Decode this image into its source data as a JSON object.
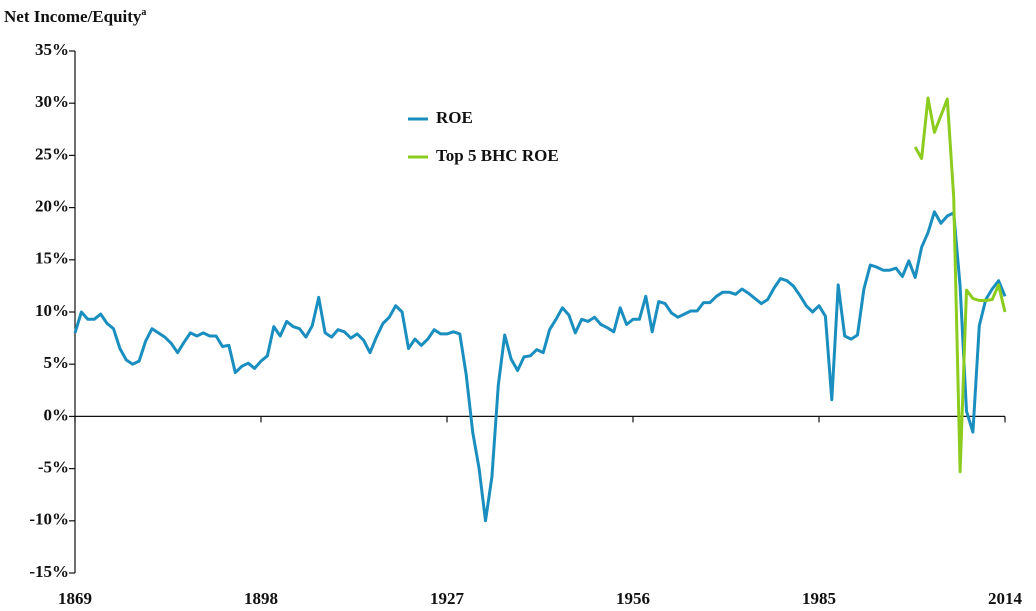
{
  "chart_data": {
    "type": "line",
    "title": "Net Income/Equity",
    "title_superscript": "a",
    "x": [
      1869,
      1870,
      1871,
      1872,
      1873,
      1874,
      1875,
      1876,
      1877,
      1878,
      1879,
      1880,
      1881,
      1882,
      1883,
      1884,
      1885,
      1886,
      1887,
      1888,
      1889,
      1890,
      1891,
      1892,
      1893,
      1894,
      1895,
      1896,
      1897,
      1898,
      1899,
      1900,
      1901,
      1902,
      1903,
      1904,
      1905,
      1906,
      1907,
      1908,
      1909,
      1910,
      1911,
      1912,
      1913,
      1914,
      1915,
      1916,
      1917,
      1918,
      1919,
      1920,
      1921,
      1922,
      1923,
      1924,
      1925,
      1926,
      1927,
      1928,
      1929,
      1930,
      1931,
      1932,
      1933,
      1934,
      1935,
      1936,
      1937,
      1938,
      1939,
      1940,
      1941,
      1942,
      1943,
      1944,
      1945,
      1946,
      1947,
      1948,
      1949,
      1950,
      1951,
      1952,
      1953,
      1954,
      1955,
      1956,
      1957,
      1958,
      1959,
      1960,
      1961,
      1962,
      1963,
      1964,
      1965,
      1966,
      1967,
      1968,
      1969,
      1970,
      1971,
      1972,
      1973,
      1974,
      1975,
      1976,
      1977,
      1978,
      1979,
      1980,
      1981,
      1982,
      1983,
      1984,
      1985,
      1986,
      1987,
      1988,
      1989,
      1990,
      1991,
      1992,
      1993,
      1994,
      1995,
      1996,
      1997,
      1998,
      1999,
      2000,
      2001,
      2002,
      2003,
      2004,
      2005,
      2006,
      2007,
      2008,
      2009,
      2010,
      2011,
      2012,
      2013,
      2014
    ],
    "series": [
      {
        "name": "ROE",
        "color": "#1a8fbf",
        "values": [
          8,
          10,
          9.3,
          9.3,
          9.8,
          8.9,
          8.4,
          6.5,
          5.4,
          5.0,
          5.3,
          7.2,
          8.4,
          8.0,
          7.6,
          7.0,
          6.1,
          7.1,
          8.0,
          7.7,
          8.0,
          7.7,
          7.7,
          6.7,
          6.8,
          4.2,
          4.8,
          5.1,
          4.6,
          5.3,
          5.8,
          8.6,
          7.7,
          9.1,
          8.6,
          8.4,
          7.6,
          8.7,
          11.4,
          8.0,
          7.6,
          8.3,
          8.1,
          7.5,
          7.9,
          7.3,
          6.1,
          7.6,
          8.9,
          9.5,
          10.6,
          10.0,
          6.5,
          7.4,
          6.8,
          7.4,
          8.3,
          7.9,
          7.9,
          8.1,
          7.9,
          4.0,
          -1.5,
          -5.0,
          -10.0,
          -5.8,
          3.0,
          7.8,
          5.5,
          4.4,
          5.7,
          5.8,
          6.4,
          6.1,
          8.3,
          9.3,
          10.4,
          9.7,
          8.0,
          9.3,
          9.1,
          9.5,
          8.8,
          8.5,
          8.1,
          10.4,
          8.8,
          9.3,
          9.3,
          11.5,
          8.1,
          11.0,
          10.8,
          9.9,
          9.5,
          9.8,
          10.1,
          10.1,
          10.9,
          10.9,
          11.5,
          11.9,
          11.9,
          11.7,
          12.2,
          11.8,
          11.3,
          10.8,
          11.2,
          12.3,
          13.2,
          13.0,
          12.5,
          11.6,
          10.6,
          10.0,
          10.6,
          9.6,
          1.6,
          12.6,
          7.7,
          7.4,
          7.8,
          12.2,
          14.5,
          14.3,
          14.0,
          14.0,
          14.2,
          13.4,
          14.9,
          13.3,
          16.2,
          17.6,
          19.6,
          18.5,
          19.2,
          19.5,
          12.5,
          0.5,
          -1.5,
          8.7,
          11.2,
          12.2,
          13.0,
          11.5
        ]
      },
      {
        "name": "Top 5 BHC ROE",
        "color": "#8ccc1e",
        "values": [
          null,
          null,
          null,
          null,
          null,
          null,
          null,
          null,
          null,
          null,
          null,
          null,
          null,
          null,
          null,
          null,
          null,
          null,
          null,
          null,
          null,
          null,
          null,
          null,
          null,
          null,
          null,
          null,
          null,
          null,
          null,
          null,
          null,
          null,
          null,
          null,
          null,
          null,
          null,
          null,
          null,
          null,
          null,
          null,
          null,
          null,
          null,
          null,
          null,
          null,
          null,
          null,
          null,
          null,
          null,
          null,
          null,
          null,
          null,
          null,
          null,
          null,
          null,
          null,
          null,
          null,
          null,
          null,
          null,
          null,
          null,
          null,
          null,
          null,
          null,
          null,
          null,
          null,
          null,
          null,
          null,
          null,
          null,
          null,
          null,
          null,
          null,
          null,
          null,
          null,
          null,
          null,
          null,
          null,
          null,
          null,
          null,
          null,
          null,
          null,
          null,
          null,
          null,
          null,
          null,
          null,
          null,
          null,
          null,
          null,
          null,
          null,
          null,
          null,
          null,
          null,
          null,
          null,
          null,
          null,
          null,
          null,
          null,
          null,
          null,
          null,
          null,
          null,
          null,
          null,
          null,
          25.8,
          24.7,
          30.5,
          27.2,
          28.8,
          30.4,
          21.0,
          -5.3,
          12.1,
          11.3,
          11.1,
          11.1,
          11.2,
          12.6,
          10.0
        ]
      }
    ],
    "xlim": [
      1869,
      2014
    ],
    "xticks": [
      1869,
      1898,
      1927,
      1956,
      1985,
      2014
    ],
    "ylim": [
      -15,
      35
    ],
    "yticks": [
      {
        "value": -15,
        "label": "-15%"
      },
      {
        "value": -10,
        "label": "-10%"
      },
      {
        "value": -5,
        "label": "-5%"
      },
      {
        "value": 0,
        "label": "0%"
      },
      {
        "value": 5,
        "label": "5%"
      },
      {
        "value": 10,
        "label": "10%"
      },
      {
        "value": 15,
        "label": "15%"
      },
      {
        "value": 20,
        "label": "20%"
      },
      {
        "value": 25,
        "label": "25%"
      },
      {
        "value": 30,
        "label": "30%"
      },
      {
        "value": 35,
        "label": "35%"
      }
    ],
    "grid": false
  }
}
